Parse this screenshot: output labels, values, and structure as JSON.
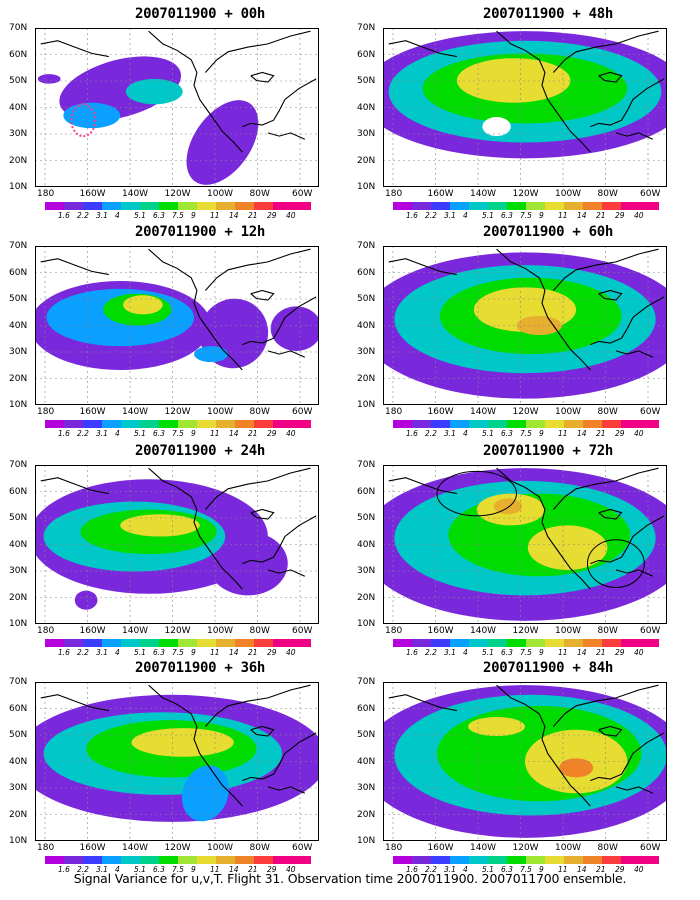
{
  "panels": [
    {
      "title": "2007011900 + 00h",
      "lead": 0
    },
    {
      "title": "2007011900 + 48h",
      "lead": 48
    },
    {
      "title": "2007011900 + 12h",
      "lead": 12
    },
    {
      "title": "2007011900 + 60h",
      "lead": 60
    },
    {
      "title": "2007011900 + 24h",
      "lead": 24
    },
    {
      "title": "2007011900 + 72h",
      "lead": 72
    },
    {
      "title": "2007011900 + 36h",
      "lead": 36
    },
    {
      "title": "2007011900 + 84h",
      "lead": 84
    }
  ],
  "lat_labels": [
    "70N",
    "60N",
    "50N",
    "40N",
    "30N",
    "20N",
    "10N"
  ],
  "lon_labels": [
    "180",
    "160W",
    "140W",
    "120W",
    "100W",
    "80W",
    "60W"
  ],
  "colorbar": {
    "labels": [
      "1.6",
      "2.2",
      "3.1",
      "4",
      "5.1",
      "6.3",
      "7.5",
      "9",
      "11",
      "14",
      "21",
      "29",
      "40"
    ],
    "colors": [
      "#a000c8",
      "#7a28dc",
      "#3c3cff",
      "#0aa0ff",
      "#00c8c8",
      "#00d28c",
      "#00dc00",
      "#a0e632",
      "#e6dc32",
      "#e6af2d",
      "#f08228",
      "#fa3c3c",
      "#f00082"
    ]
  },
  "footer": "Signal Variance for u,v,T. Flight 31. Observation time 2007011900. 2007011700 ensemble."
}
